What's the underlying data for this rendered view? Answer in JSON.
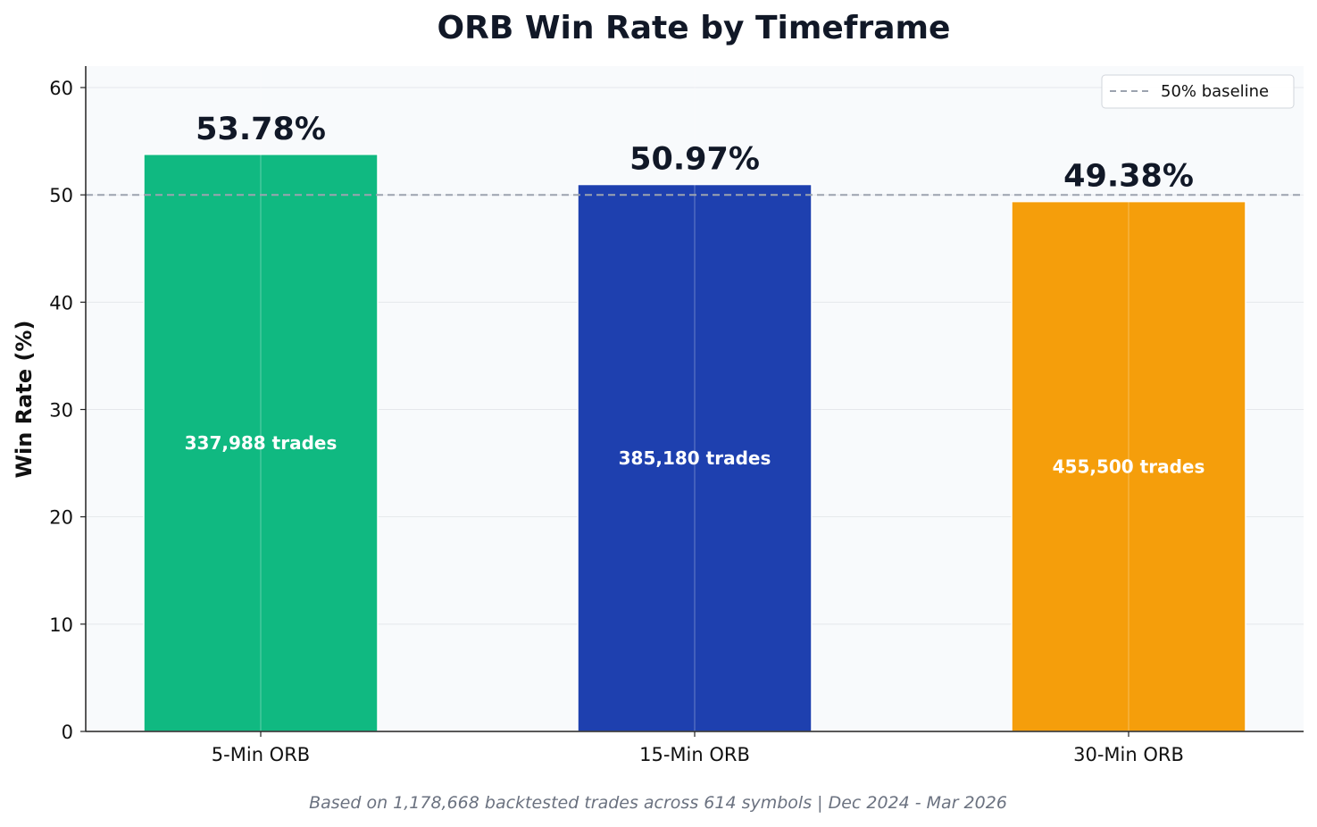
{
  "chart_data": {
    "type": "bar",
    "title": "ORB Win Rate by Timeframe",
    "xlabel": "",
    "ylabel": "Win Rate (%)",
    "ylim": [
      0,
      62
    ],
    "yticks": [
      0,
      10,
      20,
      30,
      40,
      50,
      60
    ],
    "categories": [
      "5-Min ORB",
      "15-Min ORB",
      "30-Min ORB"
    ],
    "values": [
      53.78,
      50.97,
      49.38
    ],
    "value_labels": [
      "53.78%",
      "50.97%",
      "49.38%"
    ],
    "trade_labels": [
      "337,988 trades",
      "385,180 trades",
      "455,500 trades"
    ],
    "colors": [
      "#10b981",
      "#1e40af",
      "#f59e0b"
    ],
    "baseline": {
      "value": 50,
      "label": "50% baseline",
      "color": "#9ca3af"
    },
    "legend_position": "top-right",
    "grid": true,
    "footnote": "Based on 1,178,668 backtested trades across 614 symbols | Dec 2024 - Mar 2026"
  }
}
